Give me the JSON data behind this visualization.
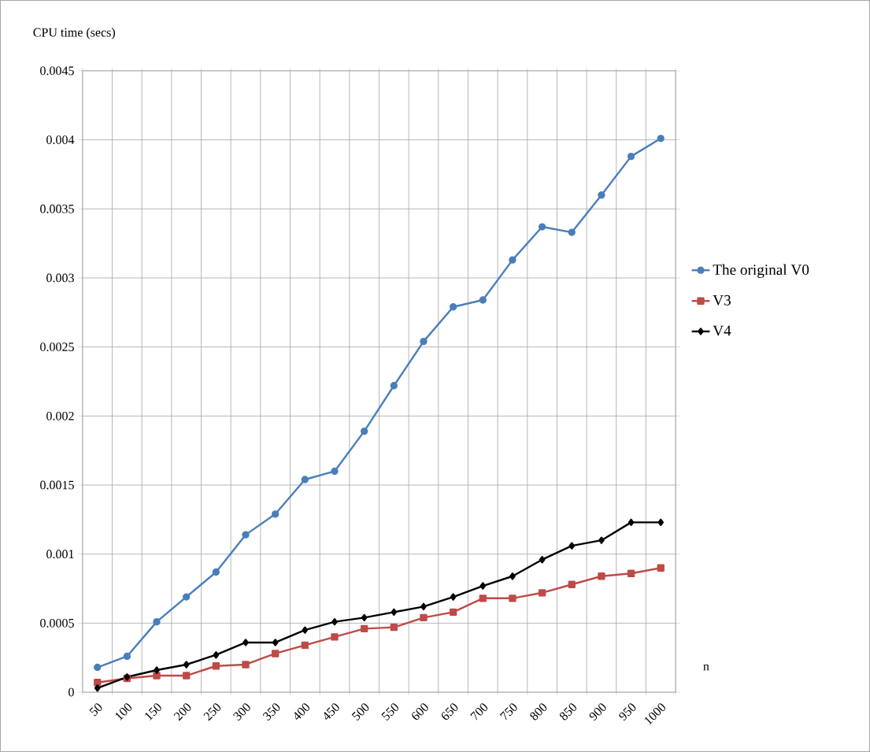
{
  "chart_data": {
    "type": "line",
    "ylabel": "CPU time (secs)",
    "xlabel": "n",
    "categories": [
      "50",
      "100",
      "150",
      "200",
      "250",
      "300",
      "350",
      "400",
      "450",
      "500",
      "550",
      "600",
      "650",
      "700",
      "750",
      "800",
      "850",
      "900",
      "950",
      "1000"
    ],
    "series": [
      {
        "name": "The original V0",
        "color": "#4a7ebb",
        "marker": "circle",
        "values": [
          0.00018,
          0.00026,
          0.00051,
          0.00069,
          0.00087,
          0.00114,
          0.00129,
          0.00154,
          0.0016,
          0.00189,
          0.00222,
          0.00254,
          0.00279,
          0.00284,
          0.00313,
          0.00337,
          0.00333,
          0.0036,
          0.00388,
          0.00401
        ]
      },
      {
        "name": "V3",
        "color": "#be4b48",
        "marker": "square",
        "values": [
          7e-05,
          0.0001,
          0.00012,
          0.00012,
          0.00019,
          0.0002,
          0.00028,
          0.00034,
          0.0004,
          0.00046,
          0.00047,
          0.00054,
          0.00058,
          0.00068,
          0.00068,
          0.00072,
          0.00078,
          0.00084,
          0.00086,
          0.0009
        ]
      },
      {
        "name": "V4",
        "color": "#000000",
        "marker": "diamond",
        "values": [
          3e-05,
          0.00011,
          0.00016,
          0.0002,
          0.00027,
          0.00036,
          0.00036,
          0.00045,
          0.00051,
          0.00054,
          0.00058,
          0.00062,
          0.00069,
          0.00077,
          0.00084,
          0.00096,
          0.00106,
          0.0011,
          0.00123,
          0.00123
        ]
      }
    ],
    "ylim": [
      0,
      0.0045
    ],
    "yticks": [
      0,
      0.0005,
      0.001,
      0.0015,
      0.002,
      0.0025,
      0.003,
      0.0035,
      0.004,
      0.0045
    ],
    "grid": true,
    "legend": "right",
    "line_style": "solid"
  }
}
